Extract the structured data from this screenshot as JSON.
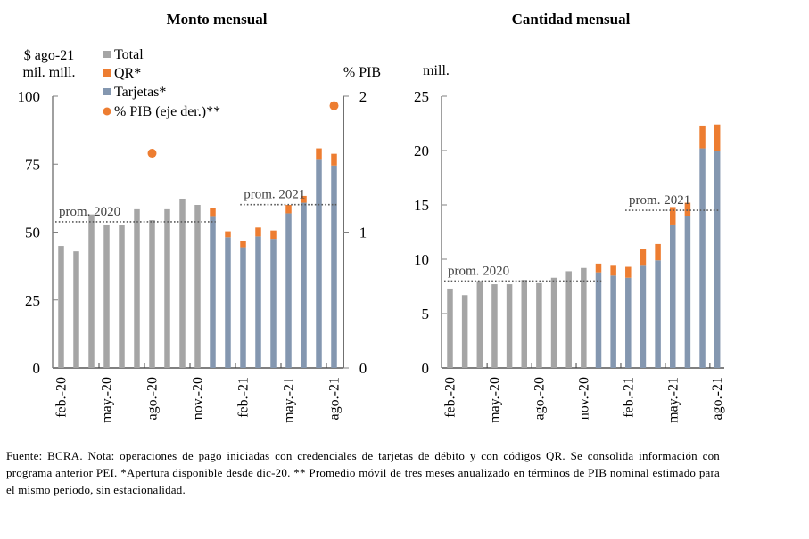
{
  "colors": {
    "total": "#A5A5A5",
    "qr": "#ED7D31",
    "tarjetas": "#8497B0",
    "pib": "#ED7D31",
    "axis": "#808080",
    "avg_line": "#595959"
  },
  "note": "Fuente: BCRA. Nota: operaciones de pago iniciadas con credenciales de tarjetas de débito y con códigos QR. Se consolida información con programa anterior PEI. *Apertura disponible desde dic-20. ** Promedio móvil de tres meses anualizado en términos de PIB nominal estimado para el mismo período, sin estacionalidad.",
  "chart_data": [
    {
      "type": "bar",
      "stacked": true,
      "title": "Monto mensual",
      "ylabel": "$ ago-21\nmil. mill.",
      "ylabel_lines": [
        "$ ago-21",
        "mil. mill."
      ],
      "y2label": "% PIB",
      "ylim": [
        0,
        100
      ],
      "y2lim": [
        0,
        2
      ],
      "yticks": [
        0,
        25,
        50,
        75,
        100
      ],
      "y2ticks": [
        0,
        1,
        2
      ],
      "categories": [
        "feb.-20",
        "mar.-20",
        "abr.-20",
        "may.-20",
        "jun.-20",
        "jul.-20",
        "ago.-20",
        "sep.-20",
        "oct.-20",
        "nov.-20",
        "dic.-20",
        "ene.-21",
        "feb.-21",
        "mar.-21",
        "abr.-21",
        "may.-21",
        "jun.-21",
        "jul.-21",
        "ago.-21"
      ],
      "xtick_labels": [
        "feb.-20",
        "may.-20",
        "ago.-20",
        "nov.-20",
        "feb.-21",
        "may.-21",
        "ago.-21"
      ],
      "legend": [
        "Total",
        "QR*",
        "Tarjetas*",
        "% PIB (eje der.)**"
      ],
      "legend_position": "top-left",
      "series": [
        {
          "name": "Total",
          "values": [
            44.9,
            42.9,
            56.5,
            52.8,
            52.5,
            58.4,
            54.4,
            58.4,
            62.3,
            60.0,
            null,
            null,
            null,
            null,
            null,
            null,
            null,
            null,
            null
          ]
        },
        {
          "name": "Tarjetas*",
          "values": [
            null,
            null,
            null,
            null,
            null,
            null,
            null,
            null,
            null,
            null,
            55.6,
            48.1,
            44.4,
            48.4,
            47.5,
            56.9,
            60.8,
            76.6,
            74.5
          ]
        },
        {
          "name": "QR*",
          "values": [
            null,
            null,
            null,
            null,
            null,
            null,
            null,
            null,
            null,
            null,
            3.3,
            2.2,
            2.3,
            3.3,
            3.1,
            3.1,
            2.5,
            4.2,
            4.3
          ]
        },
        {
          "name": "% PIB (eje der.)**",
          "axis": "right",
          "points": [
            {
              "x": "ago.-20",
              "y": 1.58
            },
            {
              "x": "ago.-21",
              "y": 1.93
            }
          ]
        }
      ],
      "averages": [
        {
          "label": "prom. 2020",
          "value": 53.8,
          "from": "feb.-20",
          "to": "dic.-20"
        },
        {
          "label": "prom. 2021",
          "value": 60.1,
          "from": "feb.-21",
          "to": "ago.-21"
        }
      ]
    },
    {
      "type": "bar",
      "stacked": true,
      "title": "Cantidad mensual",
      "ylabel": "mill.",
      "ylim": [
        0,
        25
      ],
      "yticks": [
        0,
        5,
        10,
        15,
        20,
        25
      ],
      "categories": [
        "feb.-20",
        "mar.-20",
        "abr.-20",
        "may.-20",
        "jun.-20",
        "jul.-20",
        "ago.-20",
        "sep.-20",
        "oct.-20",
        "nov.-20",
        "dic.-20",
        "ene.-21",
        "feb.-21",
        "mar.-21",
        "abr.-21",
        "may.-21",
        "jun.-21",
        "jul.-21",
        "ago.-21"
      ],
      "xtick_labels": [
        "feb.-20",
        "may.-20",
        "ago.-20",
        "nov.-20",
        "feb.-21",
        "may.-21",
        "ago.-21"
      ],
      "series": [
        {
          "name": "Total",
          "values": [
            7.3,
            6.7,
            8.0,
            7.7,
            7.7,
            8.1,
            7.8,
            8.3,
            8.9,
            9.2,
            null,
            null,
            null,
            null,
            null,
            null,
            null,
            null,
            null
          ]
        },
        {
          "name": "Tarjetas*",
          "values": [
            null,
            null,
            null,
            null,
            null,
            null,
            null,
            null,
            null,
            null,
            8.8,
            8.5,
            8.3,
            9.4,
            9.9,
            13.2,
            14.0,
            20.2,
            20.0
          ]
        },
        {
          "name": "QR*",
          "values": [
            null,
            null,
            null,
            null,
            null,
            null,
            null,
            null,
            null,
            null,
            0.8,
            0.9,
            1.0,
            1.5,
            1.5,
            1.6,
            1.2,
            2.1,
            2.4
          ]
        }
      ],
      "averages": [
        {
          "label": "prom. 2020",
          "value": 8.0,
          "from": "feb.-20",
          "to": "dic.-20"
        },
        {
          "label": "prom. 2021",
          "value": 14.5,
          "from": "feb.-21",
          "to": "ago.-21"
        }
      ]
    }
  ]
}
